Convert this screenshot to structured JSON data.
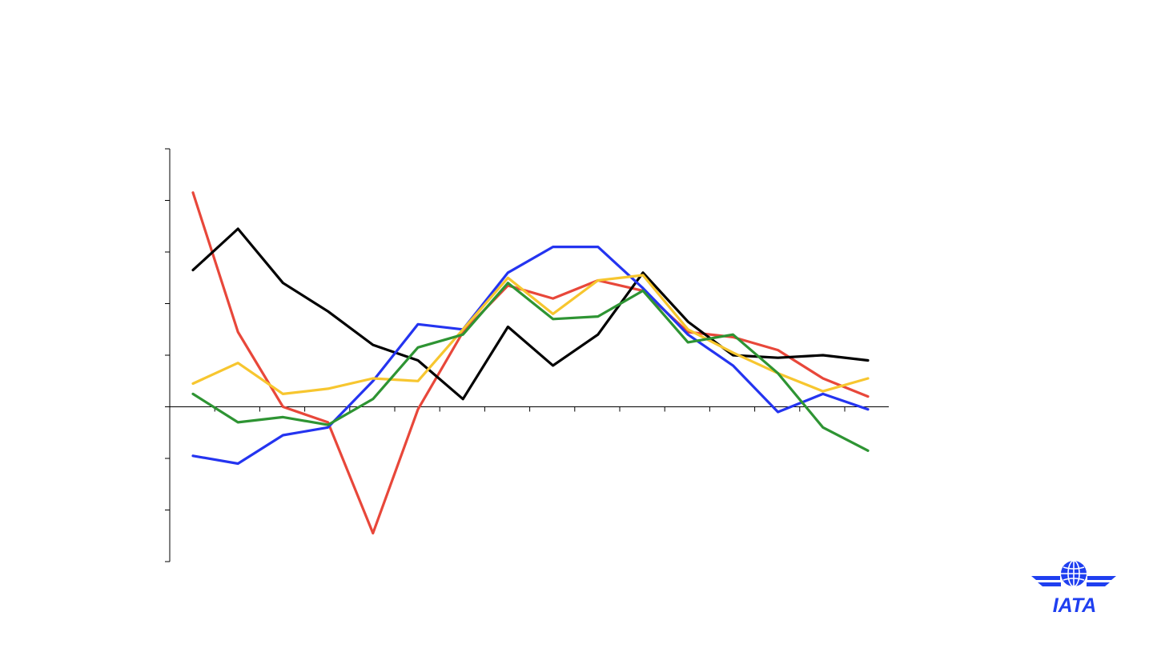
{
  "chart_data": {
    "type": "line",
    "title": "",
    "xlabel": "",
    "ylabel": "",
    "x": [
      1,
      2,
      3,
      4,
      5,
      6,
      7,
      8,
      9,
      10,
      11,
      12,
      13,
      14,
      15,
      16
    ],
    "ylim": [
      -6,
      10
    ],
    "y_tick_step": 2,
    "grid": false,
    "legend": "none",
    "series": [
      {
        "color": "#e8473a",
        "values": [
          8.3,
          2.9,
          0.0,
          -0.6,
          -4.9,
          -0.1,
          2.9,
          4.7,
          4.2,
          4.9,
          4.5,
          2.9,
          2.7,
          2.2,
          1.1,
          0.4
        ]
      },
      {
        "color": "#000000",
        "values": [
          5.3,
          6.9,
          4.8,
          3.7,
          2.4,
          1.8,
          0.3,
          3.1,
          1.6,
          2.8,
          5.2,
          3.3,
          2.0,
          1.9,
          2.0,
          1.8
        ]
      },
      {
        "color": "#2434f0",
        "values": [
          -1.9,
          -2.2,
          -1.1,
          -0.8,
          1.0,
          3.2,
          3.0,
          5.2,
          6.2,
          6.2,
          4.6,
          2.8,
          1.6,
          -0.2,
          0.5,
          -0.1
        ]
      },
      {
        "color": "#f7c62f",
        "values": [
          0.9,
          1.7,
          0.5,
          0.7,
          1.1,
          1.0,
          3.0,
          5.0,
          3.6,
          4.9,
          5.1,
          3.0,
          2.1,
          1.3,
          0.6,
          1.1
        ]
      },
      {
        "color": "#2e9433",
        "values": [
          0.5,
          -0.6,
          -0.4,
          -0.7,
          0.3,
          2.3,
          2.8,
          4.8,
          3.4,
          3.5,
          4.5,
          2.5,
          2.8,
          1.3,
          -0.8,
          -1.7
        ]
      }
    ]
  },
  "logo": {
    "text": "IATA",
    "color": "#1f3ff0"
  }
}
